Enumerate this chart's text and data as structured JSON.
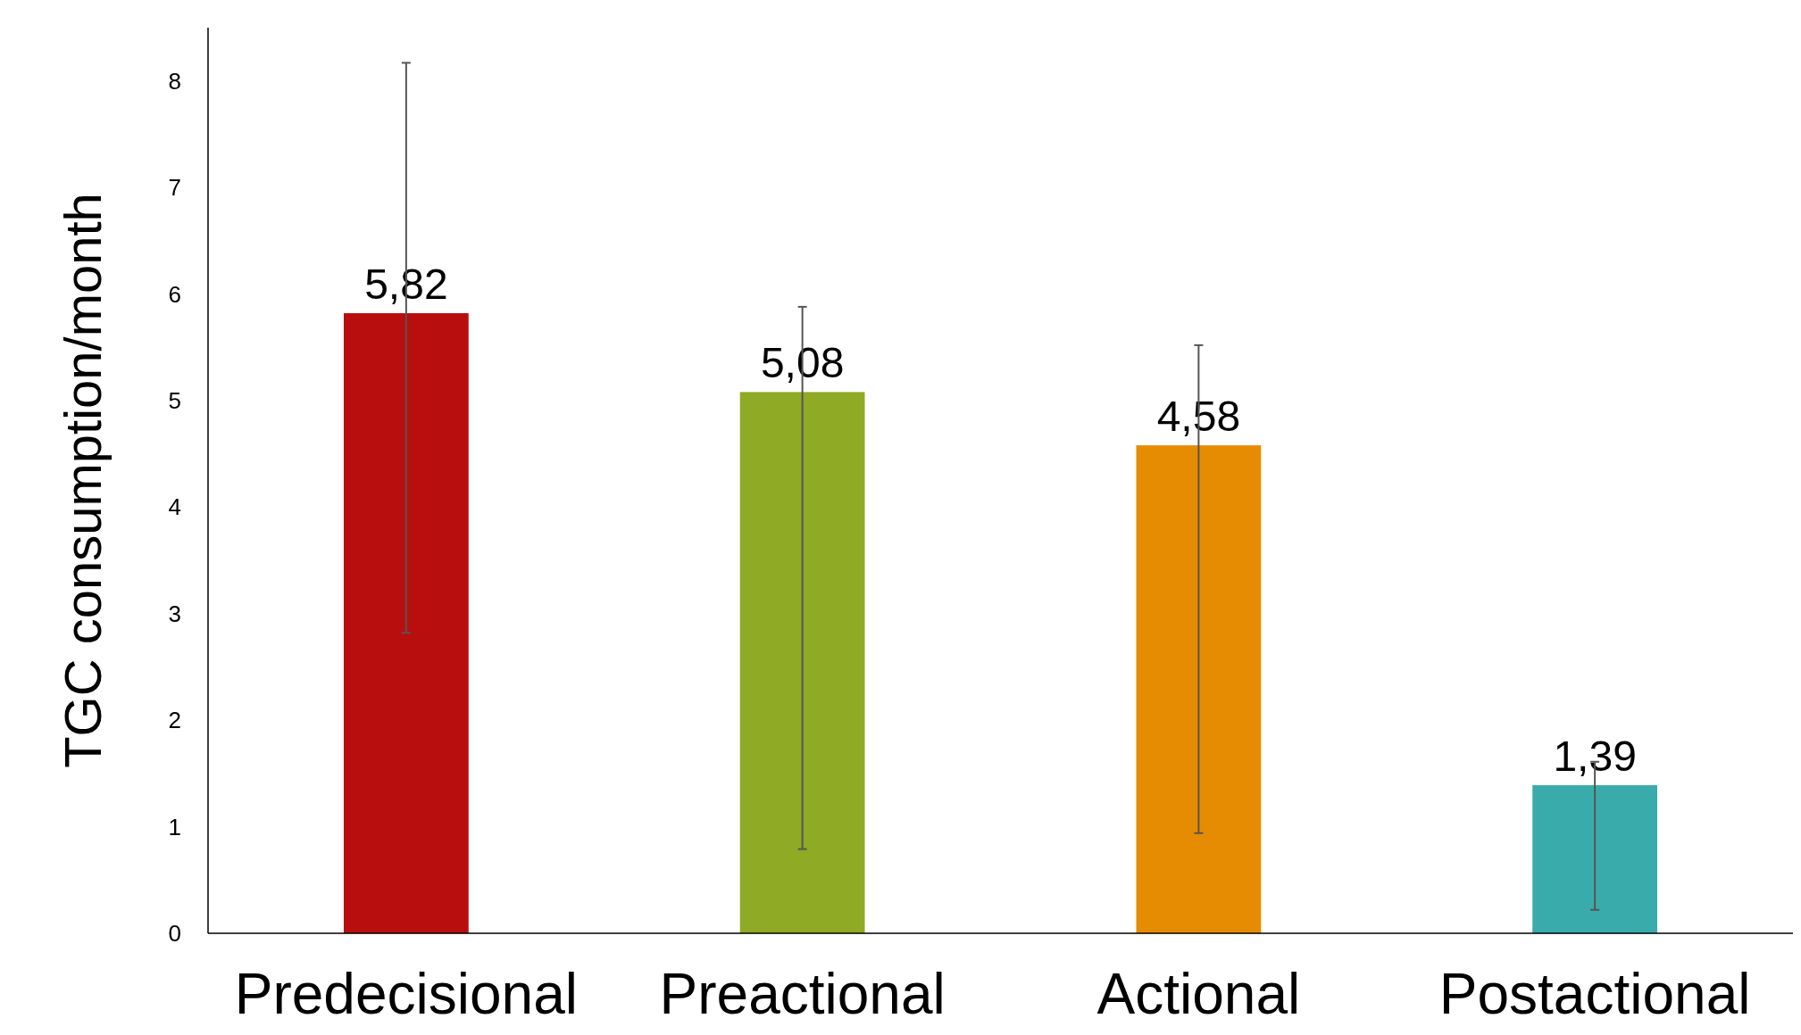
{
  "chart_data": {
    "type": "bar",
    "ylabel": "TGC consumption/month",
    "categories": [
      "Predecisional",
      "Preactional",
      "Actional",
      "Postactional"
    ],
    "values": [
      5.82,
      5.08,
      4.58,
      1.39
    ],
    "colors": [
      "#b80f0e",
      "#8faa25",
      "#e68c03",
      "#3aabab"
    ],
    "value_labels": [
      "5,82",
      "5,08",
      "4,58",
      "1,39"
    ],
    "errors": [
      [
        2.82,
        8.17
      ],
      [
        0.79,
        5.88
      ],
      [
        0.94,
        5.52
      ],
      [
        0.22,
        1.61
      ]
    ],
    "ylim": [
      0,
      8.5
    ],
    "yticks": [
      0,
      1,
      2,
      3,
      4,
      5,
      6,
      7,
      8
    ],
    "grid": false
  }
}
